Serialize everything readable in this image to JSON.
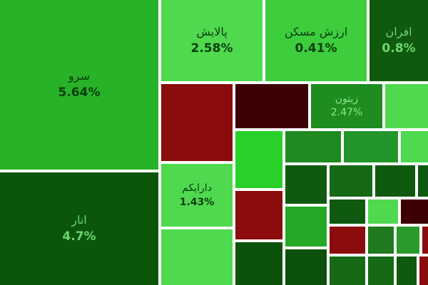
{
  "tiles": [
    {
      "name": "سرو",
      "change": "5.64%",
      "color": "#27b227",
      "text_color": "#0c3d0c"
    },
    {
      "name": "انار",
      "change": "4.7%",
      "color": "#0c560c",
      "text_color": "#6fd46f"
    },
    {
      "name": "پالایش",
      "change": "2.58%",
      "color": "#4fd94f",
      "text_color": "#0c3d0c"
    },
    {
      "name": "ارزش مسکن",
      "change": "0.41%",
      "color": "#3dcd3d",
      "text_color": "#0c3d0c"
    },
    {
      "name": "افران",
      "change": "0.8%",
      "color": "#0f5a0f",
      "text_color": "#6fd46f"
    },
    {
      "name": "زیتون",
      "change": "2.47%",
      "color": "#1f8c1f",
      "text_color": "#8ee68e"
    },
    {
      "name": "دارایکم",
      "change": "1.43%",
      "color": "#4fd94f",
      "text_color": "#0c3d0c"
    }
  ]
}
